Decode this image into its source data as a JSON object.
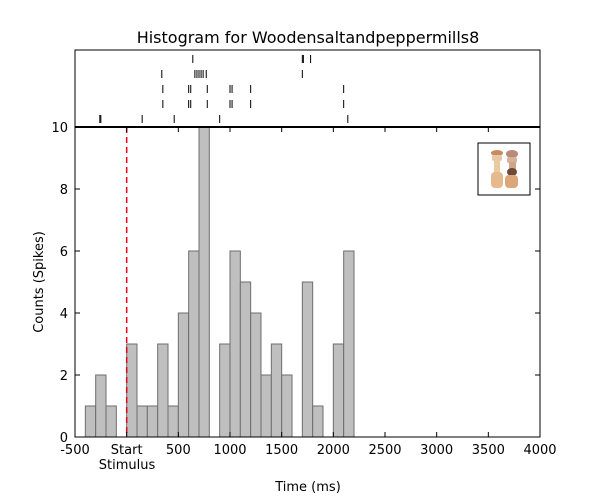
{
  "chart_data": {
    "type": "bar",
    "title": "Histogram for Woodensaltandpeppermills8",
    "xlabel": "Time (ms)",
    "ylabel": "Counts (Spikes)",
    "xlim": [
      -500,
      4000
    ],
    "ylim": [
      0,
      10
    ],
    "bin_width": 100,
    "x_ticks": [
      -500,
      0,
      500,
      1000,
      1500,
      2000,
      2500,
      3000,
      3500,
      4000
    ],
    "x_tick_labels": [
      "-500",
      "Start",
      "500",
      "1000",
      "1500",
      "2000",
      "2500",
      "3000",
      "3500",
      "4000"
    ],
    "y_ticks": [
      0,
      2,
      4,
      6,
      8,
      10
    ],
    "stimulus_label": "Stimulus",
    "stimulus_time": 0,
    "stimulus_line_color": "#e8001c",
    "bar_fill": "#bfbfbf",
    "bar_edge": "#6e6e6e",
    "bins": [
      {
        "x": -400,
        "value": 1
      },
      {
        "x": -300,
        "value": 2
      },
      {
        "x": -200,
        "value": 1
      },
      {
        "x": -100,
        "value": 0
      },
      {
        "x": 0,
        "value": 3
      },
      {
        "x": 100,
        "value": 1
      },
      {
        "x": 200,
        "value": 1
      },
      {
        "x": 300,
        "value": 3
      },
      {
        "x": 400,
        "value": 1
      },
      {
        "x": 500,
        "value": 4
      },
      {
        "x": 600,
        "value": 6
      },
      {
        "x": 700,
        "value": 10
      },
      {
        "x": 800,
        "value": 0
      },
      {
        "x": 900,
        "value": 3
      },
      {
        "x": 1000,
        "value": 6
      },
      {
        "x": 1100,
        "value": 5
      },
      {
        "x": 1200,
        "value": 4
      },
      {
        "x": 1300,
        "value": 2
      },
      {
        "x": 1400,
        "value": 3
      },
      {
        "x": 1500,
        "value": 2
      },
      {
        "x": 1600,
        "value": 0
      },
      {
        "x": 1700,
        "value": 5
      },
      {
        "x": 1800,
        "value": 1
      },
      {
        "x": 1900,
        "value": 0
      },
      {
        "x": 2000,
        "value": 3
      },
      {
        "x": 2100,
        "value": 6
      }
    ],
    "raster_trials": [
      [
        640,
        1700,
        1710,
        1780
      ],
      [
        340,
        660,
        680,
        700,
        720,
        740,
        770,
        1700
      ],
      [
        350,
        600,
        620,
        780,
        1000,
        1020,
        1200,
        2100
      ],
      [
        350,
        600,
        620,
        780,
        1000,
        1020,
        1200,
        2100
      ],
      [
        -260,
        -250,
        150,
        460,
        900,
        2140
      ]
    ],
    "legend_icon": "salt-and-pepper-mills-icon",
    "legend_placement": "top-right",
    "grid": false
  }
}
